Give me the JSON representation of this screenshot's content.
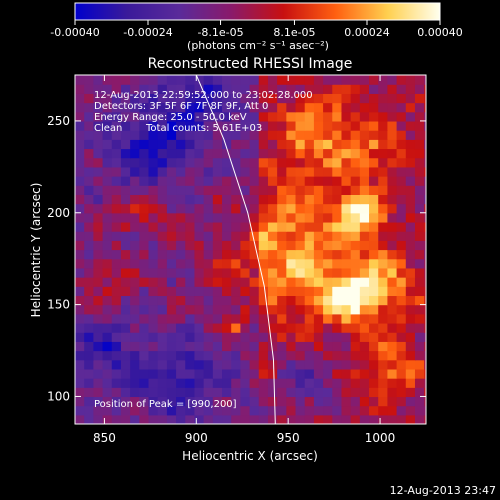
{
  "colorbar": {
    "ticks": [
      "-0.00040",
      "-0.00024",
      "-8.1e-05",
      "8.1e-05",
      "0.00024",
      "0.00040"
    ],
    "tick_values": [
      -0.0004,
      -0.00024,
      -8.1e-05,
      8.1e-05,
      0.00024,
      0.0004
    ],
    "range": [
      -0.0004,
      0.0004
    ],
    "unit_label": "(photons cm⁻² s⁻¹ asec⁻²)"
  },
  "annotations": {
    "time": "12-Aug-2013 22:59:52.000 to 23:02:28.000",
    "detectors": "Detectors: 3F 5F 6F 7F 8F 9F, Att 0",
    "energy": "Energy Range: 25.0 - 50.0 keV",
    "clean": "Clean",
    "counts": "Total counts: 5.61E+03",
    "peak": "Position of Peak = [990,200]"
  },
  "footer": {
    "timestamp": "12-Aug-2013 23:47"
  },
  "chart_data": {
    "type": "heatmap",
    "title": "Reconstructed RHESSI Image",
    "xlabel": "Heliocentric X (arcsec)",
    "ylabel": "Heliocentric Y (arcsec)",
    "xlim": [
      834,
      1025
    ],
    "ylim": [
      85,
      275
    ],
    "xticks": [
      850,
      900,
      950,
      1000
    ],
    "yticks": [
      100,
      150,
      200,
      250
    ],
    "colormap_stops": [
      "#0000cc",
      "#3a1a9a",
      "#5a2a9a",
      "#8a1a6a",
      "#c81010",
      "#ff6010",
      "#ffd050",
      "#ffffee"
    ],
    "blobs": [
      {
        "x": 990,
        "y": 200,
        "amp": 0.0004,
        "sx": 8,
        "sy": 7
      },
      {
        "x": 983,
        "y": 154,
        "amp": 0.00036,
        "sx": 9,
        "sy": 7
      },
      {
        "x": 960,
        "y": 180,
        "amp": 0.00022,
        "sx": 18,
        "sy": 30
      },
      {
        "x": 1000,
        "y": 160,
        "amp": 0.00024,
        "sx": 14,
        "sy": 16
      },
      {
        "x": 965,
        "y": 245,
        "amp": 0.00022,
        "sx": 14,
        "sy": 14
      },
      {
        "x": 1008,
        "y": 115,
        "amp": 0.0002,
        "sx": 10,
        "sy": 10
      },
      {
        "x": 925,
        "y": 175,
        "amp": 0.00016,
        "sx": 20,
        "sy": 20
      },
      {
        "x": 920,
        "y": 138,
        "amp": 0.0002,
        "sx": 5,
        "sy": 5
      },
      {
        "x": 855,
        "y": 165,
        "amp": 0.00012,
        "sx": 12,
        "sy": 12
      },
      {
        "x": 870,
        "y": 198,
        "amp": 0.00014,
        "sx": 14,
        "sy": 8
      },
      {
        "x": 995,
        "y": 235,
        "amp": 0.00016,
        "sx": 12,
        "sy": 14
      },
      {
        "x": 900,
        "y": 260,
        "amp": -0.0002,
        "sx": 16,
        "sy": 12
      },
      {
        "x": 875,
        "y": 235,
        "amp": -0.00024,
        "sx": 14,
        "sy": 12
      },
      {
        "x": 890,
        "y": 110,
        "amp": -0.0002,
        "sx": 16,
        "sy": 14
      },
      {
        "x": 960,
        "y": 110,
        "amp": -0.00018,
        "sx": 12,
        "sy": 12
      },
      {
        "x": 850,
        "y": 125,
        "amp": -0.00016,
        "sx": 12,
        "sy": 12
      }
    ],
    "limb_curve": [
      [
        900,
        275
      ],
      [
        915,
        240
      ],
      [
        928,
        200
      ],
      [
        937,
        160
      ],
      [
        942,
        120
      ],
      [
        943,
        85
      ]
    ],
    "peak": [
      990,
      200
    ]
  }
}
